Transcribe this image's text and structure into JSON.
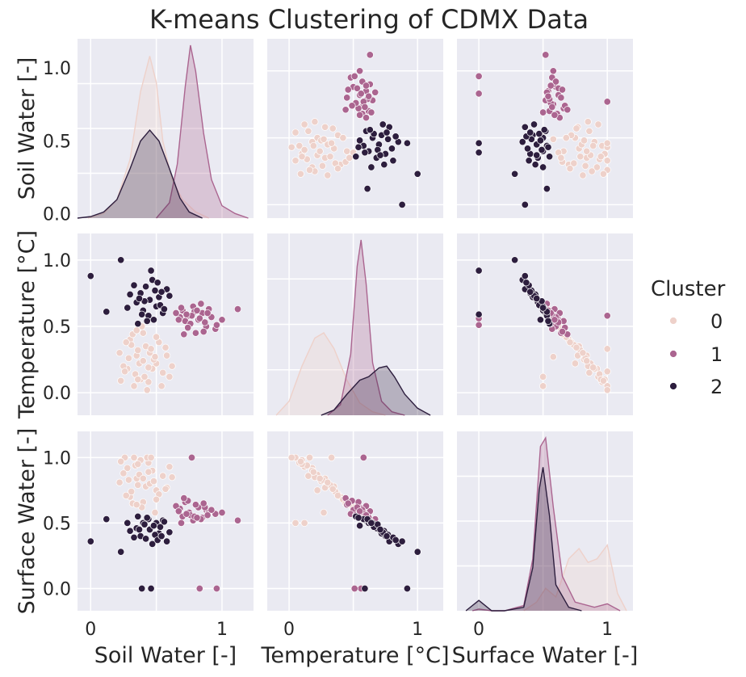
{
  "chart_data": {
    "type": "scatter",
    "subtype": "pairplot",
    "title": "K-means Clustering of CDMX Data",
    "variables": [
      "Soil Water [-]",
      "Temperature [°C]",
      "Surface Water [-]"
    ],
    "diagonal": "kde",
    "grid": true,
    "background": "#eaeaf2",
    "legend": {
      "title": "Cluster",
      "placement": "right",
      "entries": [
        "0",
        "1",
        "2"
      ]
    },
    "cluster_colors": [
      "#eed1ca",
      "#ab6590",
      "#2d1e3e"
    ],
    "ticks": {
      "Soil Water [-]": {
        "values": [
          0,
          0.5,
          1
        ],
        "labels": [
          "0.0",
          "0.5",
          "1.0"
        ],
        "x_labels": [
          "0",
          "",
          "1"
        ]
      },
      "Temperature [°C]": {
        "values": [
          0,
          0.5,
          1
        ],
        "labels": [
          "0.0",
          "0.5",
          "1.0"
        ],
        "x_labels": [
          "0",
          "",
          "1"
        ]
      },
      "Surface Water [-]": {
        "values": [
          0,
          0.5,
          1
        ],
        "labels": [
          "0.0",
          "0.5",
          "1.0"
        ],
        "x_labels": [
          "0",
          "",
          "1"
        ]
      }
    },
    "ranges": {
      "Soil Water [-]": [
        -0.1,
        1.24
      ],
      "Temperature [°C]": [
        -0.17,
        1.2
      ],
      "Surface Water [-]": [
        -0.17,
        1.2
      ]
    },
    "points": [
      {
        "c": 0,
        "sw": 0.35,
        "t": 0.28,
        "sf": 0.84
      },
      {
        "c": 0,
        "sw": 0.42,
        "t": 0.35,
        "sf": 0.78
      },
      {
        "c": 0,
        "sw": 0.28,
        "t": 0.18,
        "sf": 0.92
      },
      {
        "c": 0,
        "sw": 0.5,
        "t": 0.22,
        "sf": 0.75
      },
      {
        "c": 0,
        "sw": 0.38,
        "t": 0.1,
        "sf": 0.98
      },
      {
        "c": 0,
        "sw": 0.45,
        "t": 0.3,
        "sf": 0.8
      },
      {
        "c": 0,
        "sw": 0.3,
        "t": 0.4,
        "sf": 0.7
      },
      {
        "c": 0,
        "sw": 0.55,
        "t": 0.15,
        "sf": 0.86
      },
      {
        "c": 0,
        "sw": 0.33,
        "t": 0.05,
        "sf": 1.0
      },
      {
        "c": 0,
        "sw": 0.48,
        "t": 0.25,
        "sf": 0.82
      },
      {
        "c": 0,
        "sw": 0.4,
        "t": 0.45,
        "sf": 0.66
      },
      {
        "c": 0,
        "sw": 0.25,
        "t": 0.2,
        "sf": 0.88
      },
      {
        "c": 0,
        "sw": 0.6,
        "t": 0.12,
        "sf": 0.93
      },
      {
        "c": 0,
        "sw": 0.36,
        "t": 0.32,
        "sf": 0.79
      },
      {
        "c": 0,
        "sw": 0.44,
        "t": 0.08,
        "sf": 0.96
      },
      {
        "c": 0,
        "sw": 0.52,
        "t": 0.38,
        "sf": 0.72
      },
      {
        "c": 0,
        "sw": 0.29,
        "t": 0.26,
        "sf": 0.83
      },
      {
        "c": 0,
        "sw": 0.47,
        "t": 0.18,
        "sf": 0.9
      },
      {
        "c": 0,
        "sw": 0.39,
        "t": 0.5,
        "sf": 0.62
      },
      {
        "c": 0,
        "sw": 0.34,
        "t": 0.14,
        "sf": 0.94
      },
      {
        "c": 0,
        "sw": 0.58,
        "t": 0.28,
        "sf": 0.77
      },
      {
        "c": 0,
        "sw": 0.43,
        "t": 0.02,
        "sf": 1.0
      },
      {
        "c": 0,
        "sw": 0.31,
        "t": 0.36,
        "sf": 0.74
      },
      {
        "c": 0,
        "sw": 0.5,
        "t": 0.42,
        "sf": 0.68
      },
      {
        "c": 0,
        "sw": 0.37,
        "t": 0.22,
        "sf": 0.87
      },
      {
        "c": 0,
        "sw": 0.22,
        "t": 0.3,
        "sf": 0.81
      },
      {
        "c": 0,
        "sw": 0.62,
        "t": 0.2,
        "sf": 0.85
      },
      {
        "c": 0,
        "sw": 0.41,
        "t": 0.12,
        "sf": 0.5
      },
      {
        "c": 0,
        "sw": 0.46,
        "t": 0.33,
        "sf": 1.0
      },
      {
        "c": 0,
        "sw": 0.26,
        "t": 0.16,
        "sf": 1.0
      },
      {
        "c": 0,
        "sw": 0.54,
        "t": 0.05,
        "sf": 0.5
      },
      {
        "c": 0,
        "sw": 0.32,
        "t": 0.44,
        "sf": 0.65
      },
      {
        "c": 0,
        "sw": 0.49,
        "t": 0.27,
        "sf": 0.58
      },
      {
        "c": 0,
        "sw": 0.36,
        "t": 0.1,
        "sf": 0.95
      },
      {
        "c": 0,
        "sw": 0.44,
        "t": 0.19,
        "sf": 0.89
      },
      {
        "c": 0,
        "sw": 0.27,
        "t": 0.38,
        "sf": 0.71
      },
      {
        "c": 0,
        "sw": 0.57,
        "t": 0.34,
        "sf": 0.76
      },
      {
        "c": 0,
        "sw": 0.4,
        "t": 0.24,
        "sf": 0.84
      },
      {
        "c": 0,
        "sw": 0.23,
        "t": 0.09,
        "sf": 0.97
      },
      {
        "c": 0,
        "sw": 0.35,
        "t": 0.47,
        "sf": 0.64
      },
      {
        "c": 1,
        "sw": 0.75,
        "t": 0.58,
        "sf": 0.58
      },
      {
        "c": 1,
        "sw": 0.82,
        "t": 0.55,
        "sf": 0.62
      },
      {
        "c": 1,
        "sw": 0.7,
        "t": 0.62,
        "sf": 0.55
      },
      {
        "c": 1,
        "sw": 0.88,
        "t": 0.5,
        "sf": 0.6
      },
      {
        "c": 1,
        "sw": 0.78,
        "t": 0.65,
        "sf": 0.52
      },
      {
        "c": 1,
        "sw": 0.95,
        "t": 0.48,
        "sf": 0.57
      },
      {
        "c": 1,
        "sw": 0.72,
        "t": 0.54,
        "sf": 0.66
      },
      {
        "c": 1,
        "sw": 0.85,
        "t": 0.6,
        "sf": 0.54
      },
      {
        "c": 1,
        "sw": 0.68,
        "t": 0.57,
        "sf": 0.61
      },
      {
        "c": 1,
        "sw": 0.9,
        "t": 0.63,
        "sf": 0.59
      },
      {
        "c": 1,
        "sw": 0.8,
        "t": 0.45,
        "sf": 0.64
      },
      {
        "c": 1,
        "sw": 0.76,
        "t": 0.52,
        "sf": 0.56
      },
      {
        "c": 1,
        "sw": 1.0,
        "t": 0.55,
        "sf": 0.58
      },
      {
        "c": 1,
        "sw": 0.65,
        "t": 0.6,
        "sf": 0.63
      },
      {
        "c": 1,
        "sw": 0.84,
        "t": 0.67,
        "sf": 0.53
      },
      {
        "c": 1,
        "sw": 0.74,
        "t": 0.49,
        "sf": 0.67
      },
      {
        "c": 1,
        "sw": 0.92,
        "t": 0.57,
        "sf": 0.6
      },
      {
        "c": 1,
        "sw": 0.79,
        "t": 0.61,
        "sf": 0.55
      },
      {
        "c": 1,
        "sw": 0.71,
        "t": 0.44,
        "sf": 0.69
      },
      {
        "c": 1,
        "sw": 0.87,
        "t": 0.53,
        "sf": 0.62
      },
      {
        "c": 1,
        "sw": 1.12,
        "t": 0.63,
        "sf": 0.52
      },
      {
        "c": 1,
        "sw": 0.77,
        "t": 0.58,
        "sf": 1.0
      },
      {
        "c": 1,
        "sw": 0.83,
        "t": 0.56,
        "sf": 0.0
      },
      {
        "c": 1,
        "sw": 0.69,
        "t": 0.64,
        "sf": 0.5
      },
      {
        "c": 1,
        "sw": 0.96,
        "t": 0.51,
        "sf": 0.0
      },
      {
        "c": 1,
        "sw": 0.73,
        "t": 0.59,
        "sf": 0.57
      },
      {
        "c": 1,
        "sw": 0.86,
        "t": 0.46,
        "sf": 0.65
      },
      {
        "c": 1,
        "sw": 0.81,
        "t": 0.62,
        "sf": 0.54
      },
      {
        "c": 1,
        "sw": 0.67,
        "t": 0.55,
        "sf": 0.59
      },
      {
        "c": 1,
        "sw": 0.89,
        "t": 0.6,
        "sf": 0.56
      },
      {
        "c": 2,
        "sw": 0.45,
        "t": 0.7,
        "sf": 0.45
      },
      {
        "c": 2,
        "sw": 0.5,
        "t": 0.65,
        "sf": 0.5
      },
      {
        "c": 2,
        "sw": 0.38,
        "t": 0.75,
        "sf": 0.4
      },
      {
        "c": 2,
        "sw": 0.55,
        "t": 0.6,
        "sf": 0.52
      },
      {
        "c": 2,
        "sw": 0.42,
        "t": 0.8,
        "sf": 0.38
      },
      {
        "c": 2,
        "sw": 0.48,
        "t": 0.55,
        "sf": 0.48
      },
      {
        "c": 2,
        "sw": 0.35,
        "t": 0.68,
        "sf": 0.46
      },
      {
        "c": 2,
        "sw": 0.52,
        "t": 0.72,
        "sf": 0.42
      },
      {
        "c": 2,
        "sw": 0.4,
        "t": 0.62,
        "sf": 0.5
      },
      {
        "c": 2,
        "sw": 0.58,
        "t": 0.78,
        "sf": 0.36
      },
      {
        "c": 2,
        "sw": 0.44,
        "t": 0.58,
        "sf": 0.53
      },
      {
        "c": 2,
        "sw": 0.3,
        "t": 0.74,
        "sf": 0.44
      },
      {
        "c": 2,
        "sw": 0.47,
        "t": 0.85,
        "sf": 0.34
      },
      {
        "c": 2,
        "sw": 0.53,
        "t": 0.66,
        "sf": 0.47
      },
      {
        "c": 2,
        "sw": 0.36,
        "t": 0.52,
        "sf": 0.55
      },
      {
        "c": 2,
        "sw": 0.49,
        "t": 0.77,
        "sf": 0.41
      },
      {
        "c": 2,
        "sw": 0.41,
        "t": 0.69,
        "sf": 0.49
      },
      {
        "c": 2,
        "sw": 0.56,
        "t": 0.63,
        "sf": 0.51
      },
      {
        "c": 2,
        "sw": 0.33,
        "t": 0.81,
        "sf": 0.39
      },
      {
        "c": 2,
        "sw": 0.23,
        "t": 1.0,
        "sf": 0.28
      },
      {
        "c": 2,
        "sw": 0.12,
        "t": 0.61,
        "sf": 0.53
      },
      {
        "c": 2,
        "sw": 0.0,
        "t": 0.88,
        "sf": 0.36
      },
      {
        "c": 2,
        "sw": 0.46,
        "t": 0.92,
        "sf": 0.0
      },
      {
        "c": 2,
        "sw": 0.39,
        "t": 0.59,
        "sf": 0.0
      },
      {
        "c": 2,
        "sw": 0.6,
        "t": 0.73,
        "sf": 0.43
      },
      {
        "c": 2,
        "sw": 0.43,
        "t": 0.54,
        "sf": 0.54
      },
      {
        "c": 2,
        "sw": 0.51,
        "t": 0.83,
        "sf": 0.37
      },
      {
        "c": 2,
        "sw": 0.37,
        "t": 0.71,
        "sf": 0.45
      },
      {
        "c": 2,
        "sw": 0.28,
        "t": 0.64,
        "sf": 0.5
      },
      {
        "c": 2,
        "sw": 0.54,
        "t": 0.76,
        "sf": 0.4
      }
    ],
    "kde": {
      "Soil Water [-]": [
        {
          "cluster": 0,
          "x": [
            -0.02,
            0.1,
            0.2,
            0.3,
            0.38,
            0.45,
            0.5,
            0.55,
            0.62,
            0.7,
            0.8,
            0.9
          ],
          "y": [
            0.0,
            0.03,
            0.12,
            0.38,
            0.82,
            1.05,
            0.88,
            0.5,
            0.25,
            0.12,
            0.04,
            0.0
          ]
        },
        {
          "cluster": 1,
          "x": [
            0.5,
            0.6,
            0.66,
            0.72,
            0.76,
            0.8,
            0.86,
            0.92,
            1.0,
            1.1,
            1.2
          ],
          "y": [
            0.0,
            0.1,
            0.35,
            0.85,
            1.12,
            0.95,
            0.55,
            0.25,
            0.08,
            0.03,
            0.0
          ]
        },
        {
          "cluster": 2,
          "x": [
            -0.1,
            0.0,
            0.1,
            0.2,
            0.3,
            0.38,
            0.45,
            0.52,
            0.6,
            0.68,
            0.75,
            0.85
          ],
          "y": [
            0.0,
            0.01,
            0.04,
            0.12,
            0.32,
            0.5,
            0.57,
            0.5,
            0.32,
            0.13,
            0.04,
            0.0
          ]
        }
      ],
      "Temperature [°C]": [
        {
          "cluster": 0,
          "x": [
            -0.1,
            0.0,
            0.1,
            0.2,
            0.27,
            0.35,
            0.45,
            0.55,
            0.65,
            0.75
          ],
          "y": [
            0.0,
            0.08,
            0.28,
            0.44,
            0.47,
            0.38,
            0.2,
            0.07,
            0.02,
            0.0
          ]
        },
        {
          "cluster": 1,
          "x": [
            0.3,
            0.4,
            0.48,
            0.53,
            0.56,
            0.6,
            0.65,
            0.72,
            0.8,
            0.9
          ],
          "y": [
            0.0,
            0.06,
            0.35,
            0.85,
            1.0,
            0.75,
            0.3,
            0.08,
            0.02,
            0.0
          ]
        },
        {
          "cluster": 2,
          "x": [
            0.25,
            0.35,
            0.45,
            0.55,
            0.62,
            0.7,
            0.76,
            0.82,
            0.9,
            1.0,
            1.1
          ],
          "y": [
            0.0,
            0.03,
            0.12,
            0.2,
            0.22,
            0.27,
            0.28,
            0.22,
            0.12,
            0.04,
            0.0
          ]
        }
      ],
      "Surface Water [-]": [
        {
          "cluster": 0,
          "x": [
            0.35,
            0.45,
            0.52,
            0.6,
            0.7,
            0.78,
            0.85,
            0.92,
            1.0,
            1.08,
            1.15
          ],
          "y": [
            0.0,
            0.05,
            0.13,
            0.08,
            0.3,
            0.36,
            0.28,
            0.3,
            0.38,
            0.1,
            0.0
          ]
        },
        {
          "cluster": 1,
          "x": [
            -0.05,
            0.0,
            0.1,
            0.2,
            0.35,
            0.42,
            0.48,
            0.52,
            0.58,
            0.65,
            0.75,
            0.9,
            1.0,
            1.1
          ],
          "y": [
            0.0,
            0.01,
            0.0,
            0.0,
            0.03,
            0.3,
            0.95,
            1.0,
            0.6,
            0.2,
            0.05,
            0.02,
            0.04,
            0.0
          ]
        },
        {
          "cluster": 2,
          "x": [
            -0.1,
            0.0,
            0.1,
            0.2,
            0.35,
            0.42,
            0.47,
            0.5,
            0.55,
            0.6,
            0.7,
            0.8
          ],
          "y": [
            0.0,
            0.06,
            0.0,
            0.0,
            0.02,
            0.25,
            0.7,
            0.83,
            0.55,
            0.15,
            0.02,
            0.0
          ]
        }
      ]
    }
  }
}
